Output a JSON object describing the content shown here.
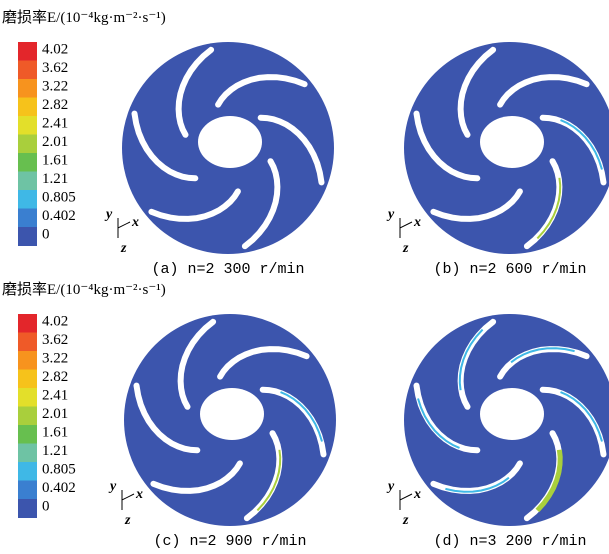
{
  "legends": [
    {
      "title": "磨损率E/(10⁻⁴kg·m⁻²·s⁻¹)",
      "labels": [
        "4.02",
        "3.62",
        "3.22",
        "2.82",
        "2.41",
        "2.01",
        "1.61",
        "1.21",
        "0.805",
        "0.402",
        "0"
      ]
    },
    {
      "title": "磨损率E/(10⁻⁴kg·m⁻²·s⁻¹)",
      "labels": [
        "4.02",
        "3.62",
        "3.22",
        "2.82",
        "2.41",
        "2.01",
        "1.61",
        "1.21",
        "0.805",
        "0.402",
        "0"
      ]
    }
  ],
  "legend_colors": [
    "#e3262b",
    "#ef5a28",
    "#f7931e",
    "#f6c21b",
    "#e3df2a",
    "#a9cf3c",
    "#67bf4f",
    "#6ec3a4",
    "#3fb8e6",
    "#3a7fd0",
    "#3c55ad"
  ],
  "panels": [
    {
      "caption": "(a) n=2 300 r/min",
      "axes": [
        "y",
        "x",
        "z"
      ]
    },
    {
      "caption": "(b) n=2 600 r/min",
      "axes": [
        "y",
        "x",
        "z"
      ]
    },
    {
      "caption": "(c) n=2 900 r/min",
      "axes": [
        "y",
        "x",
        "z"
      ]
    },
    {
      "caption": "(d) n=3 200 r/min",
      "axes": [
        "y",
        "x",
        "z"
      ]
    }
  ]
}
